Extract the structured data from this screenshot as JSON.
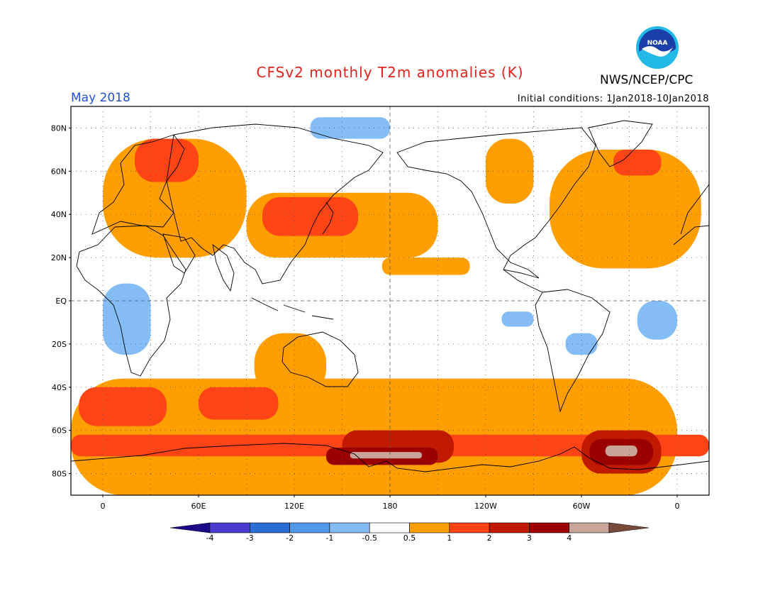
{
  "header": {
    "title": "CFSv2 monthly T2m anomalies (K)",
    "organization": "NWS/NCEP/CPC",
    "logo_text": "NOAA",
    "period": "May 2018",
    "initial_conditions": "Initial conditions: 1Jan2018-10Jan2018"
  },
  "map": {
    "projection": "equirectangular",
    "lon_range": [
      -20,
      380
    ],
    "lat_range": [
      -90,
      90
    ],
    "lat_labels": [
      {
        "lat": 80,
        "label": "80N"
      },
      {
        "lat": 60,
        "label": "60N"
      },
      {
        "lat": 40,
        "label": "40N"
      },
      {
        "lat": 20,
        "label": "20N"
      },
      {
        "lat": 0,
        "label": "EQ"
      },
      {
        "lat": -20,
        "label": "20S"
      },
      {
        "lat": -40,
        "label": "40S"
      },
      {
        "lat": -60,
        "label": "60S"
      },
      {
        "lat": -80,
        "label": "80S"
      }
    ],
    "lon_labels": [
      {
        "lon": 0,
        "label": "0"
      },
      {
        "lon": 60,
        "label": "60E"
      },
      {
        "lon": 120,
        "label": "120E"
      },
      {
        "lon": 180,
        "label": "180"
      },
      {
        "lon": 240,
        "label": "120W"
      },
      {
        "lon": 300,
        "label": "60W"
      },
      {
        "lon": 360,
        "label": "0"
      }
    ],
    "colors": {
      "c_neg4": "#1a0a88",
      "c_neg3": "#4a3bd0",
      "c_neg2": "#2a6ed8",
      "c_neg1": "#4f98ea",
      "c_neg05": "#84bdf6",
      "c_zero": "#ffffff",
      "c_pos05": "#ff9e00",
      "c_pos1": "#ff4416",
      "c_pos2": "#c21a00",
      "c_pos3": "#9a0000",
      "c_pos4": "#c7a398",
      "c_max": "#7a4a3a"
    },
    "anomaly_regions": [
      {
        "level": "pos05",
        "lon": [
          -20,
          360
        ],
        "lat": [
          -90,
          -36
        ],
        "note": "Southern Ocean warm band"
      },
      {
        "level": "pos1",
        "lon": [
          -20,
          380
        ],
        "lat": [
          -72,
          -62
        ]
      },
      {
        "level": "pos2",
        "lon": [
          150,
          220
        ],
        "lat": [
          -75,
          -60
        ]
      },
      {
        "level": "pos3",
        "lon": [
          140,
          210
        ],
        "lat": [
          -76,
          -68
        ]
      },
      {
        "level": "pos4",
        "lon": [
          155,
          200
        ],
        "lat": [
          -73,
          -70
        ]
      },
      {
        "level": "pos2",
        "lon": [
          300,
          350
        ],
        "lat": [
          -80,
          -60
        ]
      },
      {
        "level": "pos3",
        "lon": [
          305,
          345
        ],
        "lat": [
          -76,
          -64
        ]
      },
      {
        "level": "pos4",
        "lon": [
          315,
          335
        ],
        "lat": [
          -72,
          -67
        ]
      },
      {
        "level": "pos05",
        "lon": [
          95,
          140
        ],
        "lat": [
          -45,
          -15
        ],
        "note": "Indian Ocean / Australia"
      },
      {
        "level": "pos1",
        "lon": [
          -15,
          40
        ],
        "lat": [
          -58,
          -40
        ]
      },
      {
        "level": "pos1",
        "lon": [
          60,
          110
        ],
        "lat": [
          -55,
          -40
        ]
      },
      {
        "level": "pos05",
        "lon": [
          90,
          210
        ],
        "lat": [
          20,
          50
        ],
        "note": "Asia / N Pacific"
      },
      {
        "level": "pos1",
        "lon": [
          100,
          160
        ],
        "lat": [
          30,
          48
        ]
      },
      {
        "level": "pos05",
        "lon": [
          0,
          90
        ],
        "lat": [
          20,
          75
        ],
        "note": "Europe / N Africa"
      },
      {
        "level": "pos1",
        "lon": [
          20,
          60
        ],
        "lat": [
          55,
          75
        ]
      },
      {
        "level": "pos05",
        "lon": [
          280,
          375
        ],
        "lat": [
          15,
          70
        ],
        "note": "N Atlantic / N America"
      },
      {
        "level": "pos1",
        "lon": [
          320,
          350
        ],
        "lat": [
          58,
          70
        ]
      },
      {
        "level": "pos05",
        "lon": [
          240,
          270
        ],
        "lat": [
          45,
          75
        ]
      },
      {
        "level": "pos05",
        "lon": [
          175,
          230
        ],
        "lat": [
          12,
          20
        ],
        "note": "tropical Pacific band"
      },
      {
        "level": "neg05",
        "lon": [
          0,
          30
        ],
        "lat": [
          -25,
          8
        ],
        "note": "central Africa"
      },
      {
        "level": "neg05",
        "lon": [
          290,
          310
        ],
        "lat": [
          -25,
          -15
        ],
        "note": "South America"
      },
      {
        "level": "neg05",
        "lon": [
          250,
          270
        ],
        "lat": [
          -12,
          -5
        ],
        "note": "E Pacific"
      },
      {
        "level": "neg05",
        "lon": [
          130,
          180
        ],
        "lat": [
          75,
          85
        ],
        "note": "Arctic"
      },
      {
        "level": "neg05",
        "lon": [
          335,
          360
        ],
        "lat": [
          -18,
          0
        ]
      }
    ]
  },
  "colorbar": {
    "labels": [
      "-4",
      "-3",
      "-2",
      "-1",
      "-0.5",
      "0.5",
      "1",
      "2",
      "3",
      "4"
    ]
  }
}
